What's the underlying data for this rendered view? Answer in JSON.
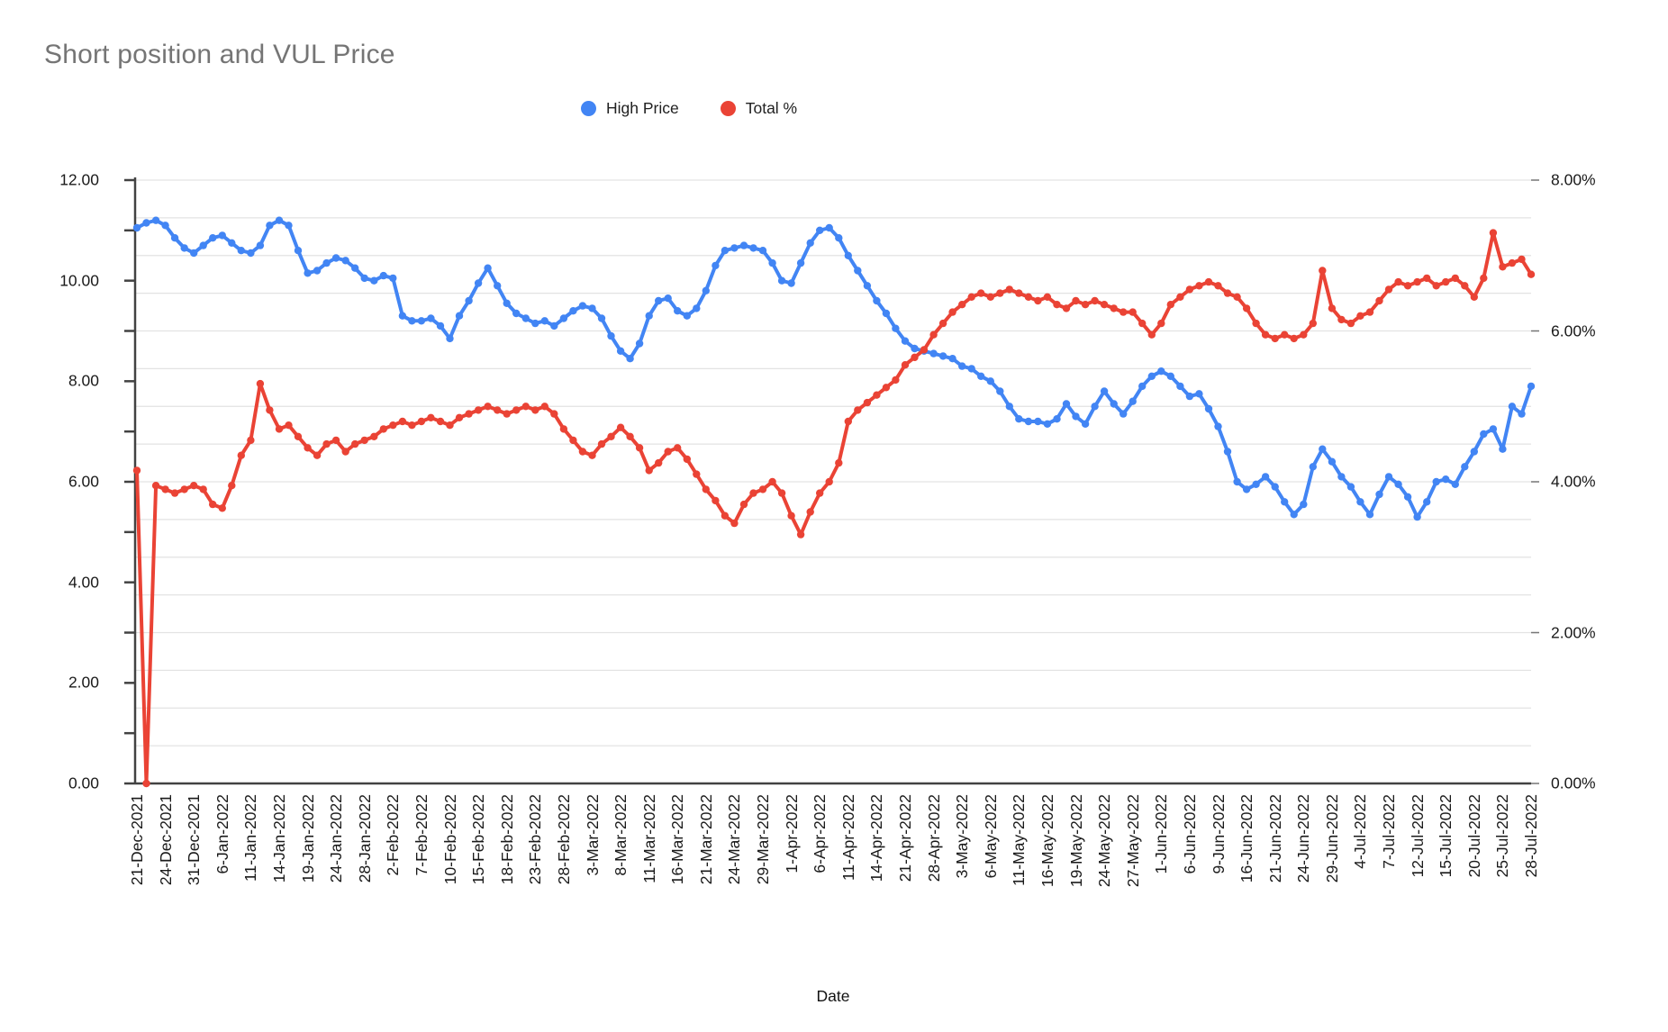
{
  "title": "Short position and VUL Price",
  "legend": [
    {
      "label": "High Price",
      "color": "#4285F4"
    },
    {
      "label": "Total %",
      "color": "#EA4335"
    }
  ],
  "x_axis": {
    "title": "Date"
  },
  "colors": {
    "gridline": "#e3e3e3",
    "axis": "#424242",
    "right_tick": "#757575",
    "title_text": "#757575"
  },
  "chart_data": {
    "type": "line",
    "title": "Short position and VUL Price",
    "xlabel": "Date",
    "legend_position": "top-center",
    "grid": "horizontal light-gray lines every 0.5 right-axis percent",
    "points_per_tick": 3,
    "x_tick_labels": [
      "21-Dec-2021",
      "24-Dec-2021",
      "31-Dec-2021",
      "6-Jan-2022",
      "11-Jan-2022",
      "14-Jan-2022",
      "19-Jan-2022",
      "24-Jan-2022",
      "28-Jan-2022",
      "2-Feb-2022",
      "7-Feb-2022",
      "10-Feb-2022",
      "15-Feb-2022",
      "18-Feb-2022",
      "23-Feb-2022",
      "28-Feb-2022",
      "3-Mar-2022",
      "8-Mar-2022",
      "11-Mar-2022",
      "16-Mar-2022",
      "21-Mar-2022",
      "24-Mar-2022",
      "29-Mar-2022",
      "1-Apr-2022",
      "6-Apr-2022",
      "11-Apr-2022",
      "14-Apr-2022",
      "21-Apr-2022",
      "28-Apr-2022",
      "3-May-2022",
      "6-May-2022",
      "11-May-2022",
      "16-May-2022",
      "19-May-2022",
      "24-May-2022",
      "27-May-2022",
      "1-Jun-2022",
      "6-Jun-2022",
      "9-Jun-2022",
      "16-Jun-2022",
      "21-Jun-2022",
      "24-Jun-2022",
      "29-Jun-2022",
      "4-Jul-2022",
      "7-Jul-2022",
      "12-Jul-2022",
      "15-Jul-2022",
      "20-Jul-2022",
      "25-Jul-2022",
      "28-Jul-2022"
    ],
    "left_axis": {
      "min": 0,
      "max": 12,
      "label_step": 2,
      "labels": [
        {
          "text": "0.00",
          "value": 0
        },
        {
          "text": "2.00",
          "value": 2
        },
        {
          "text": "4.00",
          "value": 4
        },
        {
          "text": "6.00",
          "value": 6
        },
        {
          "text": "8.00",
          "value": 8
        },
        {
          "text": "10.00",
          "value": 10
        },
        {
          "text": "12.00",
          "value": 12
        }
      ]
    },
    "right_axis": {
      "min": 0,
      "max": 8,
      "label_step": 2,
      "format": "percent",
      "labels": [
        {
          "text": "0.00%",
          "value": 0
        },
        {
          "text": "2.00%",
          "value": 2
        },
        {
          "text": "4.00%",
          "value": 4
        },
        {
          "text": "6.00%",
          "value": 6
        },
        {
          "text": "8.00%",
          "value": 8
        }
      ]
    },
    "series": [
      {
        "name": "High Price",
        "axis": "left",
        "color": "#4285F4",
        "values": [
          11.05,
          11.15,
          11.2,
          11.1,
          10.85,
          10.65,
          10.55,
          10.7,
          10.85,
          10.9,
          10.75,
          10.6,
          10.55,
          10.7,
          11.1,
          11.2,
          11.1,
          10.6,
          10.15,
          10.2,
          10.35,
          10.45,
          10.4,
          10.25,
          10.05,
          10.0,
          10.1,
          10.05,
          9.3,
          9.2,
          9.2,
          9.25,
          9.1,
          8.85,
          9.3,
          9.6,
          9.95,
          10.25,
          9.9,
          9.55,
          9.35,
          9.25,
          9.15,
          9.2,
          9.1,
          9.25,
          9.4,
          9.5,
          9.45,
          9.25,
          8.9,
          8.6,
          8.45,
          8.75,
          9.3,
          9.6,
          9.65,
          9.4,
          9.3,
          9.45,
          9.8,
          10.3,
          10.6,
          10.65,
          10.7,
          10.65,
          10.6,
          10.35,
          10.0,
          9.95,
          10.35,
          10.75,
          11.0,
          11.05,
          10.85,
          10.5,
          10.2,
          9.9,
          9.6,
          9.35,
          9.05,
          8.8,
          8.65,
          8.6,
          8.55,
          8.5,
          8.45,
          8.3,
          8.25,
          8.1,
          8.0,
          7.8,
          7.5,
          7.25,
          7.2,
          7.2,
          7.15,
          7.25,
          7.55,
          7.3,
          7.15,
          7.5,
          7.8,
          7.55,
          7.35,
          7.6,
          7.9,
          8.1,
          8.2,
          8.1,
          7.9,
          7.7,
          7.75,
          7.45,
          7.1,
          6.6,
          6.0,
          5.85,
          5.95,
          6.1,
          5.9,
          5.6,
          5.35,
          5.55,
          6.3,
          6.65,
          6.4,
          6.1,
          5.9,
          5.6,
          5.35,
          5.75,
          6.1,
          5.95,
          5.7,
          5.3,
          5.6,
          6.0,
          6.05,
          5.95,
          6.3,
          6.6,
          6.95,
          7.05,
          6.65,
          7.5,
          7.35,
          7.9
        ]
      },
      {
        "name": "Total %",
        "axis": "right",
        "color": "#EA4335",
        "values": [
          4.15,
          0.0,
          3.95,
          3.9,
          3.85,
          3.9,
          3.95,
          3.9,
          3.7,
          3.65,
          3.95,
          4.35,
          4.55,
          5.3,
          4.95,
          4.7,
          4.75,
          4.6,
          4.45,
          4.35,
          4.5,
          4.55,
          4.4,
          4.5,
          4.55,
          4.6,
          4.7,
          4.75,
          4.8,
          4.75,
          4.8,
          4.85,
          4.8,
          4.75,
          4.85,
          4.9,
          4.95,
          5.0,
          4.95,
          4.9,
          4.95,
          5.0,
          4.95,
          5.0,
          4.9,
          4.7,
          4.55,
          4.4,
          4.35,
          4.5,
          4.6,
          4.72,
          4.6,
          4.45,
          4.15,
          4.25,
          4.4,
          4.45,
          4.3,
          4.1,
          3.9,
          3.75,
          3.55,
          3.45,
          3.7,
          3.85,
          3.9,
          4.0,
          3.85,
          3.55,
          3.3,
          3.6,
          3.85,
          4.0,
          4.25,
          4.8,
          4.95,
          5.05,
          5.15,
          5.25,
          5.35,
          5.55,
          5.65,
          5.75,
          5.95,
          6.1,
          6.25,
          6.35,
          6.45,
          6.5,
          6.45,
          6.5,
          6.55,
          6.5,
          6.45,
          6.4,
          6.45,
          6.35,
          6.3,
          6.4,
          6.35,
          6.4,
          6.35,
          6.3,
          6.25,
          6.25,
          6.1,
          5.95,
          6.1,
          6.35,
          6.45,
          6.55,
          6.6,
          6.65,
          6.6,
          6.5,
          6.45,
          6.3,
          6.1,
          5.95,
          5.9,
          5.95,
          5.9,
          5.95,
          6.1,
          6.8,
          6.3,
          6.15,
          6.1,
          6.2,
          6.25,
          6.4,
          6.55,
          6.65,
          6.6,
          6.65,
          6.7,
          6.6,
          6.65,
          6.7,
          6.6,
          6.45,
          6.7,
          7.3,
          6.85,
          6.9,
          6.95,
          6.75
        ]
      }
    ]
  }
}
